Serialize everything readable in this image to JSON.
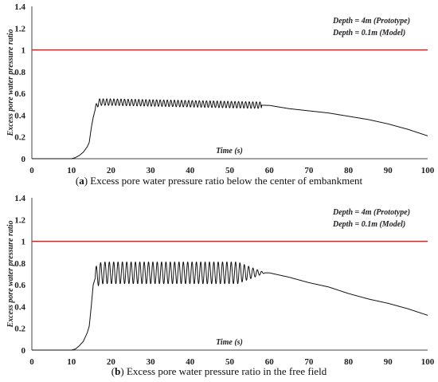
{
  "chart_data": [
    {
      "type": "line",
      "panel_letter": "a",
      "caption": "Excess pore water pressure ratio below the center of embankment",
      "xlabel": "Time (s)",
      "ylabel": "Excess pore water pressure ratio",
      "xlim": [
        0,
        100
      ],
      "ylim": [
        0,
        1.4
      ],
      "x_ticks": [
        "0",
        "10",
        "20",
        "30",
        "40",
        "50",
        "60",
        "70",
        "80",
        "90",
        "100"
      ],
      "y_ticks": [
        "0",
        "0.2",
        "0.4",
        "0.6",
        "0.8",
        "1",
        "1.2",
        "1.4"
      ],
      "legend_lines": [
        "Depth = 4m (Prototype)",
        "Depth = 0.1m (Model)"
      ],
      "legend_position": "top-right",
      "reference_line": {
        "y": 1,
        "color": "#e02020"
      },
      "series": [
        {
          "color": "#111111",
          "x": [
            0,
            10,
            11,
            12,
            13,
            14,
            14.5,
            15,
            15.5,
            16,
            16.5,
            17,
            18,
            20,
            60,
            65,
            70,
            75,
            80,
            85,
            90,
            95,
            100
          ],
          "y": [
            0,
            0,
            0.01,
            0.03,
            0.06,
            0.11,
            0.15,
            0.28,
            0.38,
            0.45,
            0.5,
            0.52,
            0.52,
            0.52,
            0.49,
            0.46,
            0.44,
            0.42,
            0.39,
            0.36,
            0.32,
            0.27,
            0.21
          ],
          "oscillation": {
            "x_start": 16,
            "x_end": 58,
            "period": 0.9,
            "amplitude": 0.03
          }
        }
      ]
    },
    {
      "type": "line",
      "panel_letter": "b",
      "caption": "Excess pore water pressure ratio in the free field",
      "xlabel": "Time (s)",
      "ylabel": "Excess pore water pressure ratio",
      "xlim": [
        0,
        100
      ],
      "ylim": [
        0,
        1.4
      ],
      "x_ticks": [
        "0",
        "10",
        "20",
        "30",
        "40",
        "50",
        "60",
        "70",
        "80",
        "90",
        "100"
      ],
      "y_ticks": [
        "0",
        "0.2",
        "0.4",
        "0.6",
        "0.8",
        "1",
        "1.2",
        "1.4"
      ],
      "legend_lines": [
        "Depth = 4m (Prototype)",
        "Depth = 0.1m (Model)"
      ],
      "legend_position": "top-right",
      "reference_line": {
        "y": 1,
        "color": "#e02020"
      },
      "series": [
        {
          "color": "#111111",
          "x": [
            0,
            10,
            11,
            12,
            13,
            14,
            14.5,
            15,
            15.5,
            16,
            17,
            18,
            20,
            60,
            65,
            70,
            75,
            80,
            85,
            90,
            95,
            100
          ],
          "y": [
            0,
            0,
            0.01,
            0.04,
            0.08,
            0.16,
            0.22,
            0.4,
            0.6,
            0.66,
            0.7,
            0.71,
            0.71,
            0.71,
            0.67,
            0.62,
            0.58,
            0.52,
            0.47,
            0.43,
            0.38,
            0.32
          ],
          "oscillation": {
            "x_start": 16,
            "x_end": 59,
            "period": 1.1,
            "amplitude": 0.1,
            "taper_from": 52
          }
        }
      ]
    }
  ]
}
